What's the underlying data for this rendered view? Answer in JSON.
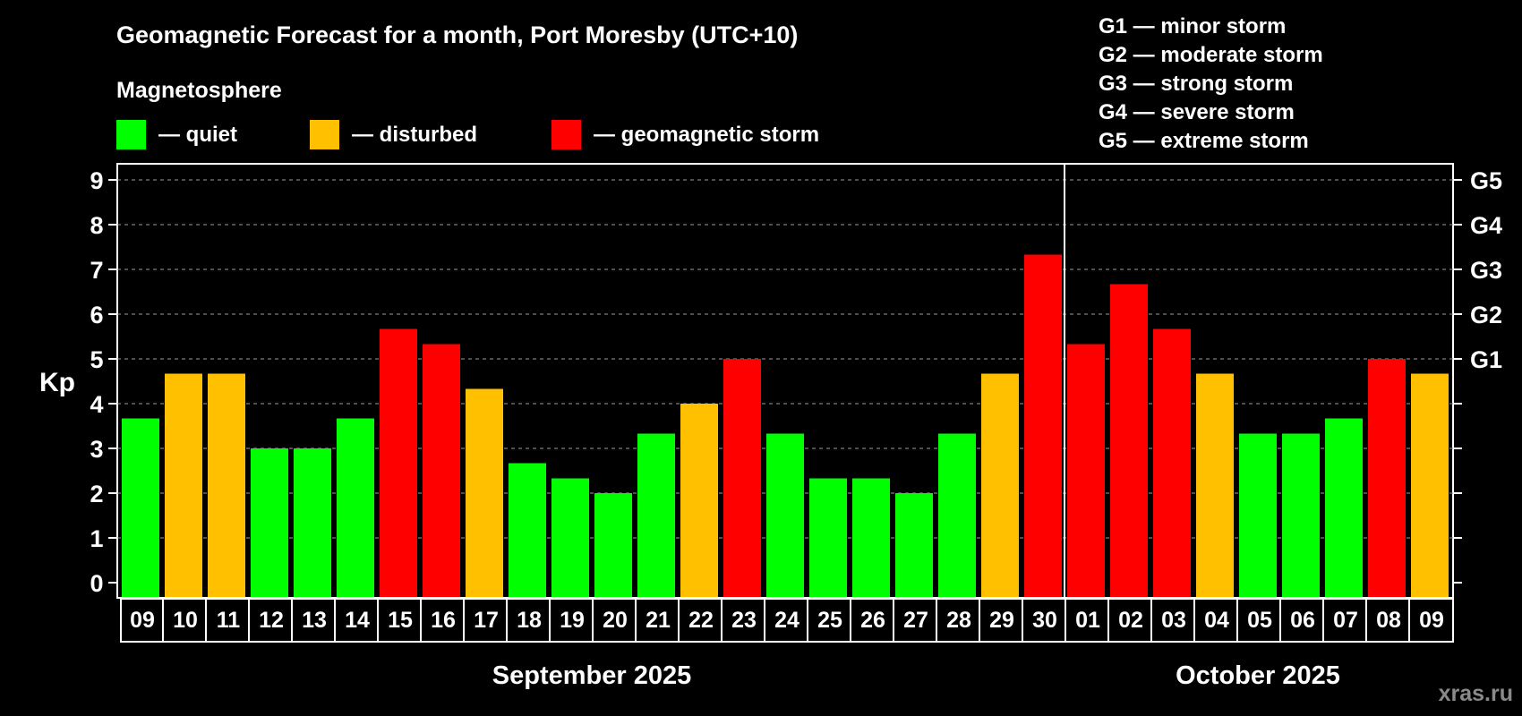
{
  "chart_data": {
    "type": "bar",
    "title": "Geomagnetic Forecast for a month, Port Moresby (UTC+10)",
    "ylabel": "Kp",
    "ylim": [
      0,
      9
    ],
    "yticks": [
      "0",
      "1",
      "2",
      "3",
      "4",
      "5",
      "6",
      "7",
      "8",
      "9"
    ],
    "right_axis": [
      {
        "kp": 5,
        "label": "G1"
      },
      {
        "kp": 6,
        "label": "G2"
      },
      {
        "kp": 7,
        "label": "G3"
      },
      {
        "kp": 8,
        "label": "G4"
      },
      {
        "kp": 9,
        "label": "G5"
      }
    ],
    "legend": {
      "heading": "Magnetosphere",
      "items": [
        {
          "label": "— quiet",
          "color": "#00ff00"
        },
        {
          "label": "— disturbed",
          "color": "#ffc000"
        },
        {
          "label": "— geomagnetic storm",
          "color": "#ff0000"
        }
      ]
    },
    "storm_scale": [
      "G1 — minor storm",
      "G2 — moderate storm",
      "G3 — strong storm",
      "G4 — severe storm",
      "G5 — extreme storm"
    ],
    "categories": [
      "09",
      "10",
      "11",
      "12",
      "13",
      "14",
      "15",
      "16",
      "17",
      "18",
      "19",
      "20",
      "21",
      "22",
      "23",
      "24",
      "25",
      "26",
      "27",
      "28",
      "29",
      "30",
      "01",
      "02",
      "03",
      "04",
      "05",
      "06",
      "07",
      "08",
      "09"
    ],
    "values": [
      3.67,
      4.67,
      4.67,
      3.0,
      3.0,
      3.67,
      5.67,
      5.33,
      4.33,
      2.67,
      2.33,
      2.0,
      3.33,
      4.0,
      5.0,
      3.33,
      2.33,
      2.33,
      2.0,
      3.33,
      4.67,
      7.33,
      5.33,
      6.67,
      5.67,
      4.67,
      3.33,
      3.33,
      3.67,
      5.0,
      4.67
    ],
    "status": [
      "quiet",
      "disturbed",
      "disturbed",
      "quiet",
      "quiet",
      "quiet",
      "storm",
      "storm",
      "disturbed",
      "quiet",
      "quiet",
      "quiet",
      "quiet",
      "disturbed",
      "storm",
      "quiet",
      "quiet",
      "quiet",
      "quiet",
      "quiet",
      "disturbed",
      "storm",
      "storm",
      "storm",
      "storm",
      "disturbed",
      "quiet",
      "quiet",
      "quiet",
      "storm",
      "disturbed"
    ],
    "status_colors": {
      "quiet": "#00ff00",
      "disturbed": "#ffc000",
      "storm": "#ff0000"
    },
    "months": [
      {
        "label": "September 2025",
        "first_index": 0,
        "last_index": 21
      },
      {
        "label": "October 2025",
        "first_index": 22,
        "last_index": 30
      }
    ],
    "grid": true
  },
  "watermark": "xras.ru"
}
